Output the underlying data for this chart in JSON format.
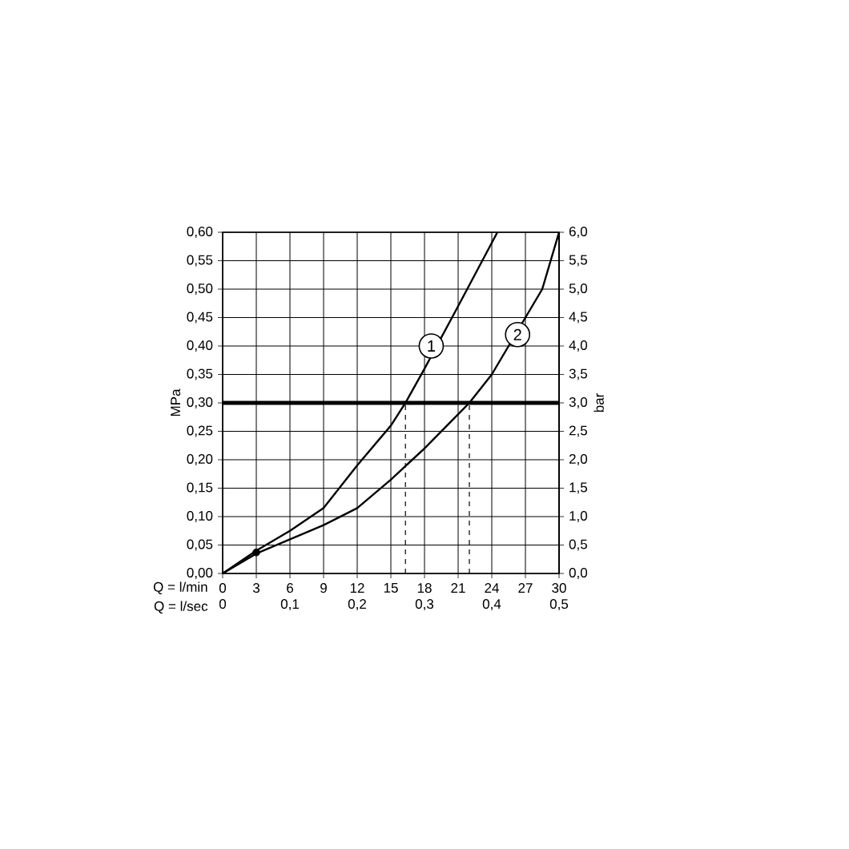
{
  "chart_data": {
    "type": "line",
    "xlabel": "Q = l/min",
    "ylabel": "MPa",
    "y2label": "bar",
    "x2label": "Q = l/sec",
    "xlim": [
      0,
      30
    ],
    "xticks": [
      0,
      3,
      6,
      9,
      12,
      15,
      18,
      21,
      24,
      27,
      30
    ],
    "ylim": [
      0,
      0.6
    ],
    "yticks": [
      {
        "value": 0,
        "label": "0,00"
      },
      {
        "value": 0.05,
        "label": "0,05"
      },
      {
        "value": 0.1,
        "label": "0,10"
      },
      {
        "value": 0.15,
        "label": "0,15"
      },
      {
        "value": 0.2,
        "label": "0,20"
      },
      {
        "value": 0.25,
        "label": "0,25"
      },
      {
        "value": 0.3,
        "label": "0,30"
      },
      {
        "value": 0.35,
        "label": "0,35"
      },
      {
        "value": 0.4,
        "label": "0,40"
      },
      {
        "value": 0.45,
        "label": "0,45"
      },
      {
        "value": 0.5,
        "label": "0,50"
      },
      {
        "value": 0.55,
        "label": "0,55"
      },
      {
        "value": 0.6,
        "label": "0,60"
      }
    ],
    "y2lim": [
      0,
      6
    ],
    "y2ticks": [
      {
        "value": 0,
        "label": "0,0"
      },
      {
        "value": 0.5,
        "label": "0,5"
      },
      {
        "value": 1,
        "label": "1,0"
      },
      {
        "value": 1.5,
        "label": "1,5"
      },
      {
        "value": 2,
        "label": "2,0"
      },
      {
        "value": 2.5,
        "label": "2,5"
      },
      {
        "value": 3,
        "label": "3,0"
      },
      {
        "value": 3.5,
        "label": "3,5"
      },
      {
        "value": 4,
        "label": "4,0"
      },
      {
        "value": 4.5,
        "label": "4,5"
      },
      {
        "value": 5,
        "label": "5,0"
      },
      {
        "value": 5.5,
        "label": "5,5"
      },
      {
        "value": 6,
        "label": "6,0"
      }
    ],
    "x2lim": [
      0,
      0.5
    ],
    "x2ticks": [
      0,
      {
        "value": 0.1,
        "label": "0,1"
      },
      {
        "value": 0.2,
        "label": "0,2"
      },
      {
        "value": 0.3,
        "label": "0,3"
      },
      {
        "value": 0.4,
        "label": "0,4"
      },
      {
        "value": 0.5,
        "label": "0,5"
      }
    ],
    "grid": true,
    "series": [
      {
        "color": "#000000",
        "x": [
          0,
          3,
          6,
          9,
          12,
          15,
          16.3,
          18,
          21,
          24.5
        ],
        "values": [
          0,
          0.04,
          0.075,
          0.115,
          0.19,
          0.26,
          0.3,
          0.36,
          0.47,
          0.6
        ]
      },
      {
        "color": "#000000",
        "x": [
          0,
          3,
          6,
          9,
          12,
          15,
          18,
          22,
          24,
          27,
          28.5,
          30
        ],
        "values": [
          0,
          0.035,
          0.06,
          0.085,
          0.115,
          0.165,
          0.22,
          0.3,
          0.35,
          0.45,
          0.5,
          0.6
        ]
      },
      {
        "type": "line",
        "line_style": "dashed",
        "color": "#000000",
        "x": [
          16.3,
          16.3
        ],
        "values": [
          0,
          0.3
        ]
      },
      {
        "type": "line",
        "line_style": "dashed",
        "color": "#000000",
        "x": [
          22,
          22
        ],
        "values": [
          0,
          0.3
        ]
      },
      {
        "type": "scatter",
        "color": "#000000",
        "x": [
          3
        ],
        "values": [
          0.037
        ]
      }
    ],
    "ref_lines": [
      {
        "axis": "y",
        "value": 0.3,
        "color": "#000000"
      }
    ],
    "annotations": [
      {
        "text": "1",
        "x": 18.6,
        "y": 0.4
      },
      {
        "text": "2",
        "x": 26.3,
        "y": 0.42
      }
    ]
  }
}
